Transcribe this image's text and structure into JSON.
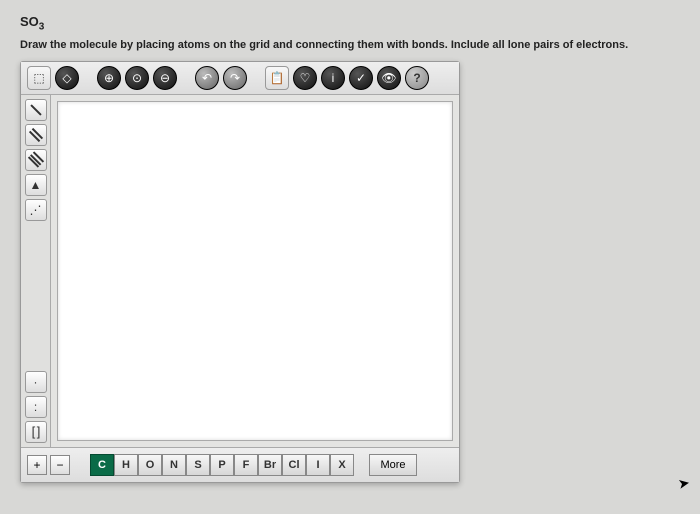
{
  "title_html": "SO<sub>3</sub>",
  "instruction": "Draw the molecule by placing atoms on the grid and connecting them with bonds. Include all lone pairs of electrons.",
  "top_toolbar": {
    "select": "⬚",
    "erase": "◇",
    "zoom_in": "⊕",
    "zoom_fit": "⊙",
    "zoom_out": "⊖",
    "undo": "↶",
    "redo": "↷",
    "paste": "📋",
    "templates": "♡",
    "info": "i",
    "check": "✓",
    "view": "👁",
    "help": "?"
  },
  "left_tools": {
    "single": "/",
    "double": "//",
    "triple": "///",
    "wedge": "▲",
    "hash": "⋰",
    "lone_pair_one": "·",
    "lone_pair_two": ":",
    "brackets": "[ ]"
  },
  "bottom": {
    "plus": "+",
    "minus": "−",
    "elements": [
      "C",
      "H",
      "O",
      "N",
      "S",
      "P",
      "F",
      "Br",
      "Cl",
      "I",
      "X"
    ],
    "active_index": 0,
    "more": "More"
  },
  "colors": {
    "page_bg": "#d8d8d6",
    "active_element_bg": "#0a6b47"
  }
}
